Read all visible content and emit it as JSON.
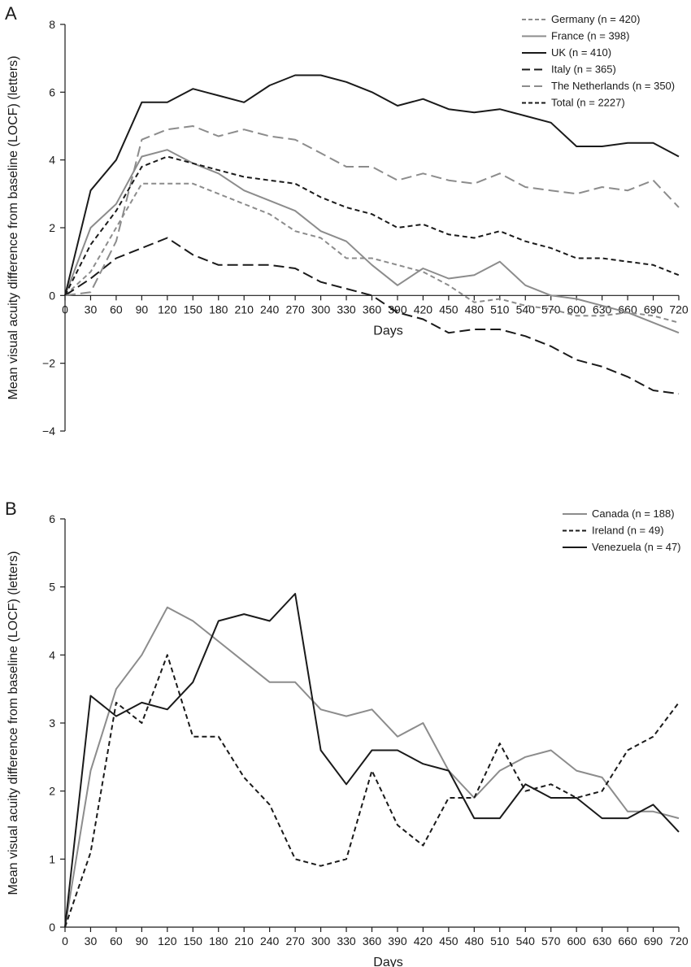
{
  "chart_data": [
    {
      "type": "line",
      "panel_label": "A",
      "xlabel": "Days",
      "ylabel": "Mean visual acuity difference from baseline (LOCF) (letters)",
      "ylim": [
        -4,
        8
      ],
      "yticks": [
        "−4",
        "−2",
        "0",
        "2",
        "4",
        "6",
        "8"
      ],
      "x": [
        0,
        30,
        60,
        90,
        120,
        150,
        180,
        210,
        240,
        270,
        300,
        330,
        360,
        390,
        420,
        450,
        480,
        510,
        540,
        570,
        600,
        630,
        660,
        690,
        720
      ],
      "xtick_labels": [
        "0",
        "30",
        "60",
        "90",
        "120",
        "150",
        "180",
        "210",
        "240",
        "270",
        "300",
        "330",
        "360",
        "390",
        "420",
        "450",
        "480",
        "510",
        "540",
        "570",
        "600",
        "630",
        "660",
        "690",
        "720"
      ],
      "legend_position": "top-right",
      "grid": false,
      "series": [
        {
          "name": "Germany (n = 420)",
          "color": "#8c8c8c",
          "dash": "dash-short",
          "values": [
            0,
            0.7,
            2.0,
            3.3,
            3.3,
            3.3,
            3.0,
            2.7,
            2.4,
            1.9,
            1.7,
            1.1,
            1.1,
            0.9,
            0.7,
            0.3,
            -0.2,
            -0.1,
            -0.3,
            -0.4,
            -0.6,
            -0.6,
            -0.5,
            -0.6,
            -0.8
          ]
        },
        {
          "name": "France (n = 398)",
          "color": "#8c8c8c",
          "dash": "solid",
          "values": [
            0,
            2.0,
            2.7,
            4.1,
            4.3,
            3.9,
            3.6,
            3.1,
            2.8,
            2.5,
            1.9,
            1.6,
            0.9,
            0.3,
            0.8,
            0.5,
            0.6,
            1.0,
            0.3,
            0.0,
            -0.1,
            -0.3,
            -0.5,
            -0.8,
            -1.1
          ]
        },
        {
          "name": "UK (n = 410)",
          "color": "#1a1a1a",
          "dash": "solid",
          "values": [
            0,
            3.1,
            4.0,
            5.7,
            5.7,
            6.1,
            5.9,
            5.7,
            6.2,
            6.5,
            6.5,
            6.3,
            6.0,
            5.6,
            5.8,
            5.5,
            5.4,
            5.5,
            5.3,
            5.1,
            4.4,
            4.4,
            4.5,
            4.5,
            4.1
          ]
        },
        {
          "name": "Italy (n = 365)",
          "color": "#1a1a1a",
          "dash": "dash-long",
          "values": [
            0,
            0.5,
            1.1,
            1.4,
            1.7,
            1.2,
            0.9,
            0.9,
            0.9,
            0.8,
            0.4,
            0.2,
            0.0,
            -0.5,
            -0.7,
            -1.1,
            -1.0,
            -1.0,
            -1.2,
            -1.5,
            -1.9,
            -2.1,
            -2.4,
            -2.8,
            -2.9
          ]
        },
        {
          "name": "The Netherlands (n = 350)",
          "color": "#8c8c8c",
          "dash": "dash-long",
          "values": [
            0,
            0.1,
            1.6,
            4.6,
            4.9,
            5.0,
            4.7,
            4.9,
            4.7,
            4.6,
            4.2,
            3.8,
            3.8,
            3.4,
            3.6,
            3.4,
            3.3,
            3.6,
            3.2,
            3.1,
            3.0,
            3.2,
            3.1,
            3.4,
            2.6
          ]
        },
        {
          "name": "Total (n = 2227)",
          "color": "#1a1a1a",
          "dash": "dash-short",
          "values": [
            0,
            1.5,
            2.5,
            3.8,
            4.1,
            3.9,
            3.7,
            3.5,
            3.4,
            3.3,
            2.9,
            2.6,
            2.4,
            2.0,
            2.1,
            1.8,
            1.7,
            1.9,
            1.6,
            1.4,
            1.1,
            1.1,
            1.0,
            0.9,
            0.6
          ]
        }
      ]
    },
    {
      "type": "line",
      "panel_label": "B",
      "xlabel": "Days",
      "ylabel": "Mean visual acuity difference from baseline (LOCF) (letters)",
      "ylim": [
        0,
        6
      ],
      "yticks": [
        "0",
        "1",
        "2",
        "3",
        "4",
        "5",
        "6"
      ],
      "x": [
        0,
        30,
        60,
        90,
        120,
        150,
        180,
        210,
        240,
        270,
        300,
        330,
        360,
        390,
        420,
        450,
        480,
        510,
        540,
        570,
        600,
        630,
        660,
        690,
        720
      ],
      "xtick_labels": [
        "0",
        "30",
        "60",
        "90",
        "120",
        "150",
        "180",
        "210",
        "240",
        "270",
        "300",
        "330",
        "360",
        "390",
        "420",
        "450",
        "480",
        "510",
        "540",
        "570",
        "600",
        "630",
        "660",
        "690",
        "720"
      ],
      "legend_position": "top-right",
      "grid": false,
      "series": [
        {
          "name": "Canada (n = 188)",
          "color": "#8c8c8c",
          "dash": "solid",
          "values": [
            0,
            2.3,
            3.5,
            4.0,
            4.7,
            4.5,
            4.2,
            3.9,
            3.6,
            3.6,
            3.2,
            3.1,
            3.2,
            2.8,
            3.0,
            2.3,
            1.9,
            2.3,
            2.5,
            2.6,
            2.3,
            2.2,
            1.7,
            1.7,
            1.6
          ]
        },
        {
          "name": "Ireland (n = 49)",
          "color": "#1a1a1a",
          "dash": "dash-short",
          "values": [
            0,
            1.1,
            3.3,
            3.0,
            4.0,
            2.8,
            2.8,
            2.2,
            1.8,
            1.0,
            0.9,
            1.0,
            2.3,
            1.5,
            1.2,
            1.9,
            1.9,
            2.7,
            2.0,
            2.1,
            1.9,
            2.0,
            2.6,
            2.8,
            3.3
          ]
        },
        {
          "name": "Venezuela (n = 47)",
          "color": "#1a1a1a",
          "dash": "solid",
          "values": [
            0,
            3.4,
            3.1,
            3.3,
            3.2,
            3.6,
            4.5,
            4.6,
            4.5,
            4.9,
            2.6,
            2.1,
            2.6,
            2.6,
            2.4,
            2.3,
            1.6,
            1.6,
            2.1,
            1.9,
            1.9,
            1.6,
            1.6,
            1.8,
            1.4
          ]
        }
      ]
    }
  ]
}
